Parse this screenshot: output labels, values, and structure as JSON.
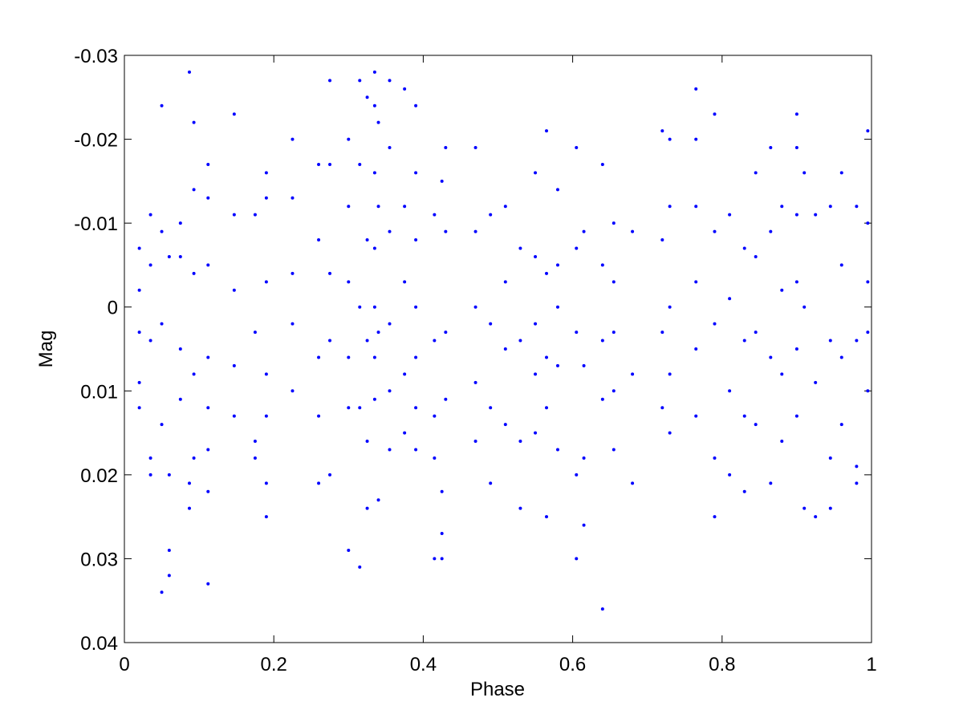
{
  "chart_data": {
    "type": "scatter",
    "xlabel": "Phase",
    "ylabel": "Mag",
    "color": "#0000ff",
    "xlim": [
      0,
      1
    ],
    "xticks": [
      0,
      0.2,
      0.4,
      0.6,
      0.8,
      1
    ],
    "ylim": [
      -0.03,
      0.04
    ],
    "yticks": [
      -0.03,
      -0.02,
      -0.01,
      0,
      0.01,
      0.02,
      0.03,
      0.04
    ],
    "y_reversed": true,
    "grid": false,
    "x": [
      0.02,
      0.02,
      0.02,
      0.02,
      0.02,
      0.035,
      0.035,
      0.035,
      0.035,
      0.035,
      0.05,
      0.05,
      0.05,
      0.05,
      0.05,
      0.06,
      0.06,
      0.06,
      0.06,
      0.075,
      0.075,
      0.075,
      0.075,
      0.087,
      0.087,
      0.087,
      0.093,
      0.093,
      0.093,
      0.093,
      0.093,
      0.112,
      0.112,
      0.112,
      0.112,
      0.112,
      0.112,
      0.112,
      0.112,
      0.147,
      0.147,
      0.147,
      0.147,
      0.147,
      0.175,
      0.175,
      0.175,
      0.175,
      0.19,
      0.19,
      0.19,
      0.19,
      0.19,
      0.19,
      0.19,
      0.225,
      0.225,
      0.225,
      0.225,
      0.225,
      0.26,
      0.26,
      0.26,
      0.26,
      0.26,
      0.275,
      0.275,
      0.275,
      0.275,
      0.275,
      0.3,
      0.3,
      0.3,
      0.3,
      0.3,
      0.3,
      0.315,
      0.315,
      0.315,
      0.315,
      0.315,
      0.325,
      0.325,
      0.325,
      0.325,
      0.325,
      0.335,
      0.335,
      0.335,
      0.335,
      0.335,
      0.335,
      0.335,
      0.34,
      0.34,
      0.34,
      0.34,
      0.355,
      0.355,
      0.355,
      0.355,
      0.355,
      0.355,
      0.375,
      0.375,
      0.375,
      0.375,
      0.375,
      0.39,
      0.39,
      0.39,
      0.39,
      0.39,
      0.39,
      0.39,
      0.415,
      0.415,
      0.415,
      0.415,
      0.415,
      0.425,
      0.425,
      0.425,
      0.425,
      0.43,
      0.43,
      0.43,
      0.43,
      0.47,
      0.47,
      0.47,
      0.47,
      0.47,
      0.49,
      0.49,
      0.49,
      0.49,
      0.51,
      0.51,
      0.51,
      0.51,
      0.53,
      0.53,
      0.53,
      0.53,
      0.55,
      0.55,
      0.55,
      0.55,
      0.55,
      0.565,
      0.565,
      0.565,
      0.565,
      0.565,
      0.58,
      0.58,
      0.58,
      0.58,
      0.58,
      0.605,
      0.605,
      0.605,
      0.605,
      0.605,
      0.615,
      0.615,
      0.615,
      0.615,
      0.64,
      0.64,
      0.64,
      0.64,
      0.64,
      0.655,
      0.655,
      0.655,
      0.655,
      0.655,
      0.68,
      0.68,
      0.68,
      0.72,
      0.72,
      0.72,
      0.72,
      0.73,
      0.73,
      0.73,
      0.73,
      0.73,
      0.765,
      0.765,
      0.765,
      0.765,
      0.765,
      0.765,
      0.79,
      0.79,
      0.79,
      0.79,
      0.79,
      0.81,
      0.81,
      0.81,
      0.81,
      0.83,
      0.83,
      0.83,
      0.83,
      0.845,
      0.845,
      0.845,
      0.845,
      0.865,
      0.865,
      0.865,
      0.865,
      0.88,
      0.88,
      0.88,
      0.88,
      0.9,
      0.9,
      0.9,
      0.9,
      0.9,
      0.9,
      0.91,
      0.91,
      0.91,
      0.925,
      0.925,
      0.925,
      0.945,
      0.945,
      0.945,
      0.945,
      0.96,
      0.96,
      0.96,
      0.96,
      0.98,
      0.98,
      0.98,
      0.98,
      0.995,
      0.995,
      0.995,
      0.995,
      0.995
    ],
    "values": [
      -0.007,
      0.003,
      0.009,
      0.012,
      -0.002,
      -0.011,
      -0.005,
      0.004,
      0.018,
      0.02,
      -0.009,
      0.002,
      0.014,
      0.034,
      -0.024,
      0.029,
      0.032,
      0.02,
      -0.006,
      -0.006,
      0.005,
      0.011,
      -0.01,
      -0.028,
      0.021,
      0.024,
      -0.022,
      -0.014,
      -0.004,
      0.008,
      0.018,
      -0.017,
      -0.013,
      -0.005,
      0.006,
      0.012,
      0.017,
      0.033,
      0.022,
      -0.023,
      -0.011,
      -0.002,
      0.007,
      0.013,
      -0.011,
      0.003,
      0.016,
      0.018,
      -0.016,
      -0.013,
      -0.003,
      0.008,
      0.013,
      0.021,
      0.025,
      -0.02,
      -0.013,
      -0.004,
      0.002,
      0.01,
      -0.017,
      -0.008,
      0.006,
      0.013,
      0.021,
      -0.027,
      -0.017,
      -0.004,
      0.004,
      0.02,
      -0.02,
      -0.012,
      -0.003,
      0.006,
      0.012,
      0.029,
      -0.027,
      -0.017,
      0,
      0.012,
      0.031,
      -0.025,
      -0.008,
      0.004,
      0.016,
      0.024,
      -0.028,
      -0.024,
      -0.016,
      -0.007,
      0,
      0.006,
      0.011,
      -0.022,
      -0.012,
      0.003,
      0.023,
      -0.027,
      -0.019,
      -0.009,
      0.002,
      0.01,
      0.017,
      -0.026,
      -0.012,
      -0.003,
      0.008,
      0.015,
      -0.024,
      -0.016,
      -0.008,
      0,
      0.006,
      0.012,
      0.017,
      -0.011,
      0.004,
      0.013,
      0.018,
      0.03,
      -0.015,
      0.022,
      0.027,
      0.03,
      -0.019,
      -0.009,
      0.003,
      0.011,
      -0.019,
      -0.009,
      0,
      0.009,
      0.016,
      -0.011,
      0.002,
      0.012,
      0.021,
      -0.012,
      -0.003,
      0.005,
      0.014,
      -0.007,
      0.004,
      0.016,
      0.024,
      -0.016,
      -0.006,
      0.002,
      0.008,
      0.015,
      -0.021,
      -0.004,
      0.006,
      0.012,
      0.025,
      -0.014,
      -0.005,
      0,
      0.007,
      0.017,
      -0.019,
      -0.007,
      0.003,
      0.02,
      0.03,
      -0.009,
      0.007,
      0.018,
      0.026,
      -0.017,
      -0.005,
      0.004,
      0.011,
      0.036,
      -0.01,
      -0.003,
      0.003,
      0.01,
      0.017,
      -0.009,
      0.008,
      0.021,
      -0.021,
      -0.008,
      0.003,
      0.012,
      -0.02,
      -0.012,
      0,
      0.008,
      0.015,
      -0.026,
      -0.02,
      -0.012,
      -0.003,
      0.005,
      0.013,
      -0.023,
      -0.009,
      0.002,
      0.018,
      0.025,
      -0.011,
      -0.001,
      0.01,
      0.02,
      -0.007,
      0.004,
      0.013,
      0.022,
      -0.016,
      -0.006,
      0.003,
      0.014,
      -0.019,
      -0.009,
      0.006,
      0.021,
      -0.012,
      -0.002,
      0.008,
      0.016,
      -0.023,
      -0.019,
      -0.011,
      -0.003,
      0.005,
      0.013,
      -0.016,
      0,
      0.024,
      -0.011,
      0.009,
      0.025,
      -0.012,
      0.004,
      0.018,
      0.024,
      -0.016,
      -0.005,
      0.006,
      0.014,
      -0.012,
      0.004,
      0.019,
      0.021,
      -0.021,
      -0.01,
      -0.003,
      0.003,
      0.01
    ]
  }
}
